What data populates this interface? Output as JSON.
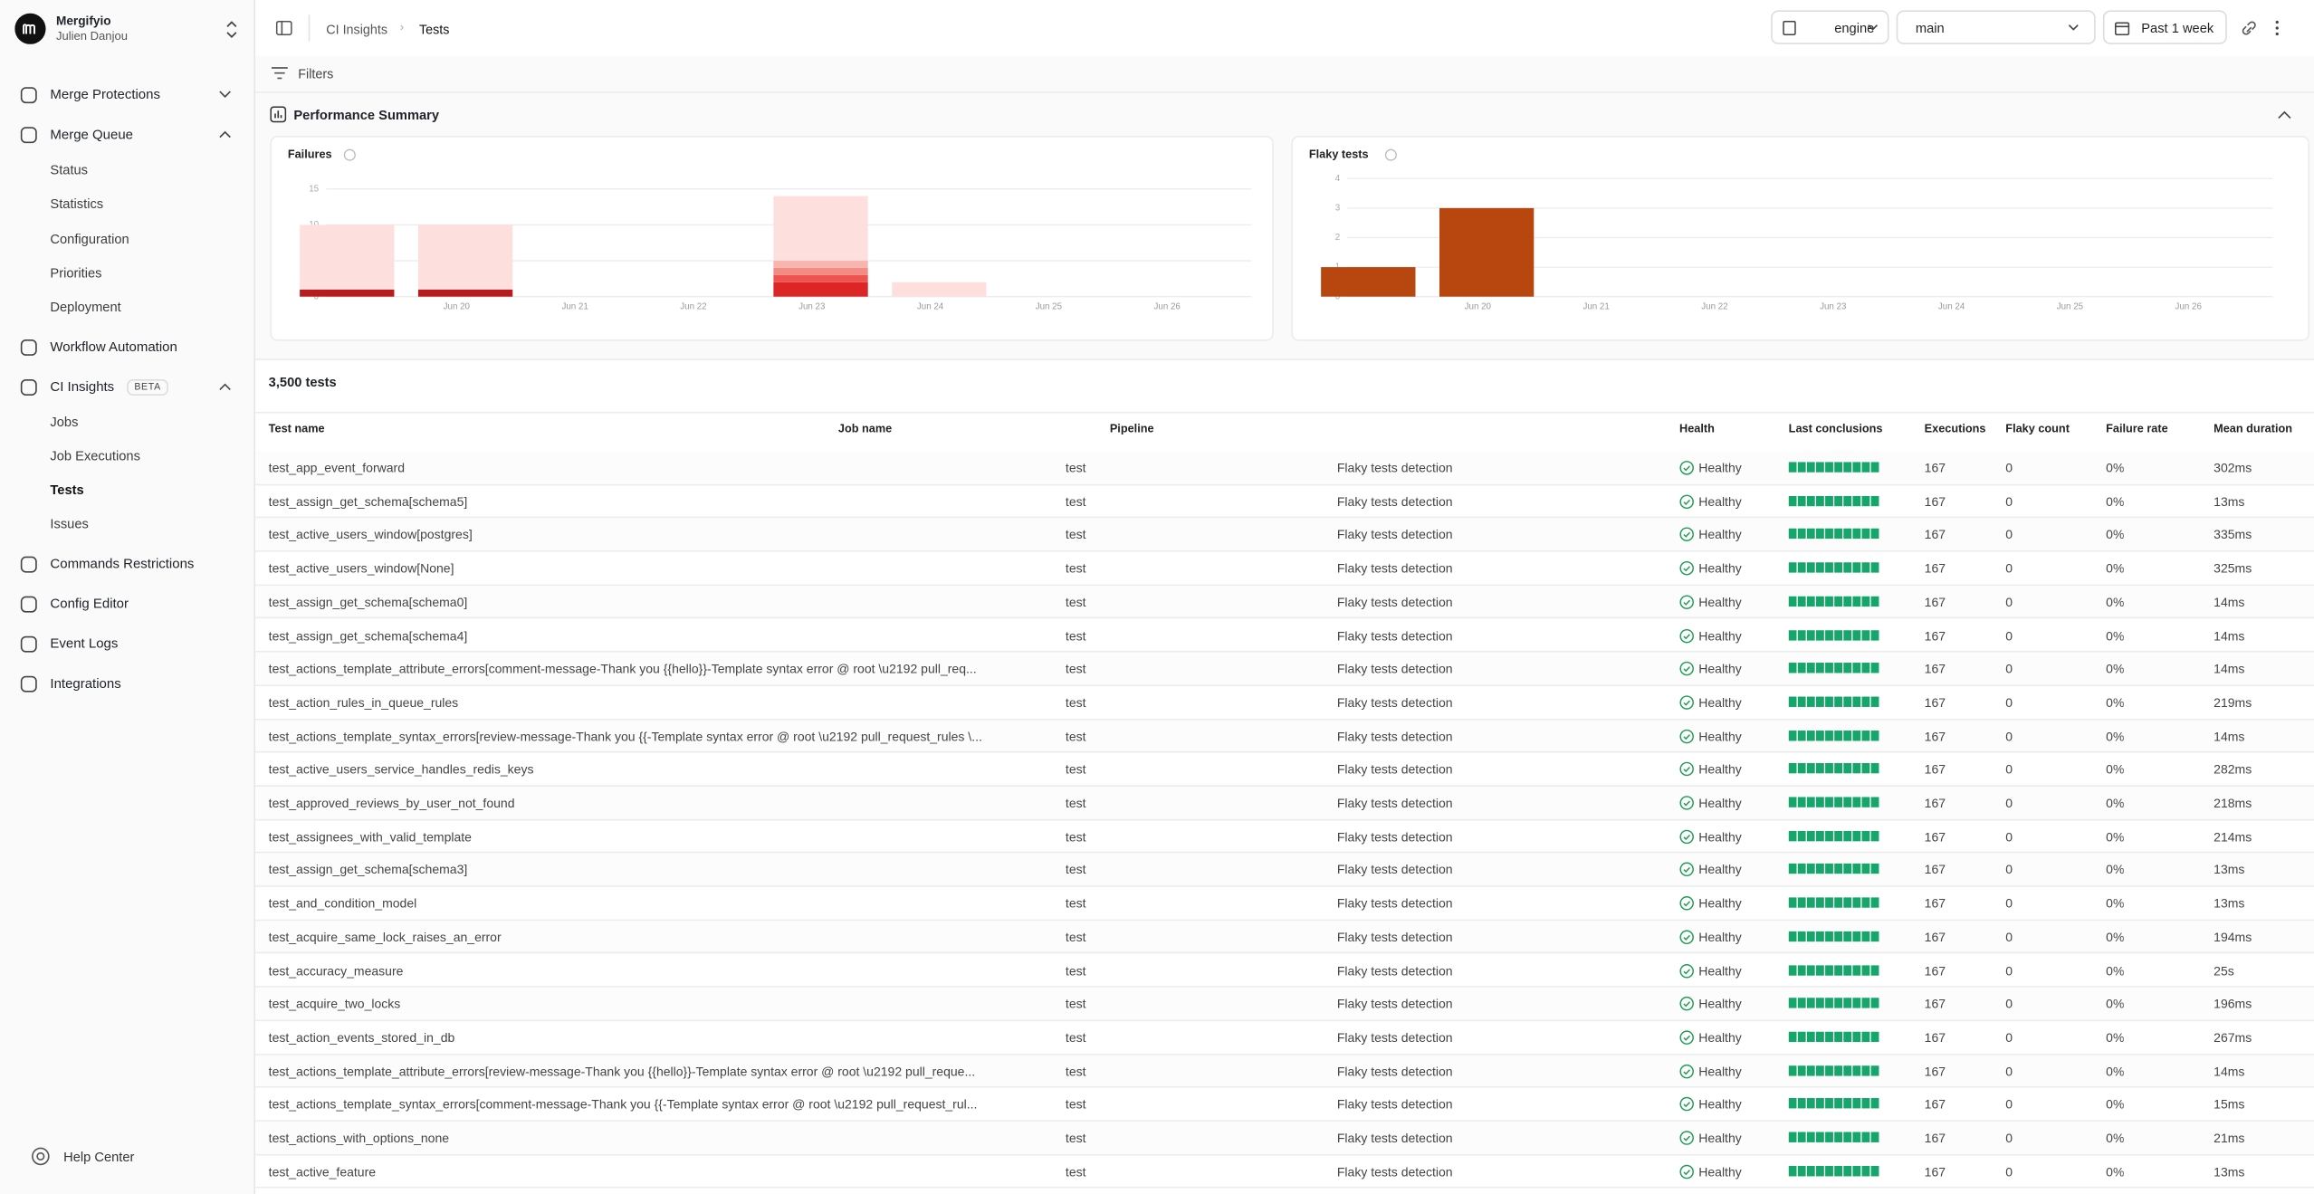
{
  "sidebar": {
    "org": "Mergifyio",
    "user": "Julien Danjou",
    "nav": [
      {
        "label": "Merge Protections",
        "expandable": true
      },
      {
        "label": "Merge Queue",
        "expandable": true,
        "children": [
          {
            "label": "Status"
          },
          {
            "label": "Statistics"
          },
          {
            "label": "Configuration"
          },
          {
            "label": "Priorities"
          },
          {
            "label": "Deployment"
          }
        ]
      },
      {
        "label": "Workflow Automation"
      },
      {
        "label": "CI Insights",
        "badge": "BETA",
        "expandable": true,
        "children": [
          {
            "label": "Jobs"
          },
          {
            "label": "Job Executions"
          },
          {
            "label": "Tests",
            "selected": true
          },
          {
            "label": "Issues"
          }
        ]
      },
      {
        "label": "Commands Restrictions"
      },
      {
        "label": "Config Editor"
      },
      {
        "label": "Event Logs"
      },
      {
        "label": "Integrations"
      }
    ],
    "help": "Help Center"
  },
  "header": {
    "breadcrumb": [
      "CI Insights",
      "Tests"
    ],
    "repository": "engine",
    "branch": "main",
    "period": "Past 1 week"
  },
  "filters": "Filters",
  "summary": {
    "title": "Performance Summary"
  },
  "chart_data": [
    {
      "type": "bar",
      "stacked": true,
      "title": "Failures",
      "categories": [
        null,
        "Jun 20",
        "Jun 21",
        "Jun 22",
        "Jun 23",
        "Jun 24",
        "Jun 25",
        "Jun 26"
      ],
      "series": [
        {
          "color": "#b91c1c",
          "values": [
            1,
            1,
            0,
            0,
            0,
            0,
            0,
            0
          ]
        },
        {
          "color": "#dc2626",
          "values": [
            0,
            0,
            0,
            0,
            2,
            0,
            0,
            0
          ]
        },
        {
          "color": "#ef5350",
          "values": [
            0,
            0,
            0,
            0,
            1,
            0,
            0,
            0
          ]
        },
        {
          "color": "#f28b82",
          "values": [
            0,
            0,
            0,
            0,
            1,
            0,
            0,
            0
          ]
        },
        {
          "color": "#f8b4ae",
          "values": [
            0,
            0,
            0,
            0,
            1,
            0,
            0,
            0
          ]
        },
        {
          "color": "#fde0dd",
          "values": [
            9,
            9,
            0,
            0,
            9,
            2,
            0,
            0
          ]
        }
      ],
      "ylim": [
        0,
        15
      ],
      "yticks": [
        0,
        5,
        10,
        15
      ],
      "grid": true
    },
    {
      "type": "bar",
      "title": "Flaky tests",
      "categories": [
        null,
        "Jun 20",
        "Jun 21",
        "Jun 22",
        "Jun 23",
        "Jun 24",
        "Jun 25",
        "Jun 26"
      ],
      "values": [
        1,
        3,
        0,
        0,
        0,
        0,
        0,
        0
      ],
      "color": "#b7460f",
      "ylim": [
        0,
        4
      ],
      "yticks": [
        0,
        1,
        2,
        3,
        4
      ],
      "grid": true
    }
  ],
  "table": {
    "count": "3,500 tests",
    "columns": [
      "Test name",
      "Job name",
      "Pipeline",
      "Health",
      "Last conclusions",
      "Executions",
      "Flaky count",
      "Failure rate",
      "Mean duration"
    ],
    "rows": [
      [
        "test_app_event_forward",
        "test",
        "Flaky tests detection",
        "Healthy",
        "167",
        "0",
        "0%",
        "302ms"
      ],
      [
        "test_assign_get_schema[schema5]",
        "test",
        "Flaky tests detection",
        "Healthy",
        "167",
        "0",
        "0%",
        "13ms"
      ],
      [
        "test_active_users_window[postgres]",
        "test",
        "Flaky tests detection",
        "Healthy",
        "167",
        "0",
        "0%",
        "335ms"
      ],
      [
        "test_active_users_window[None]",
        "test",
        "Flaky tests detection",
        "Healthy",
        "167",
        "0",
        "0%",
        "325ms"
      ],
      [
        "test_assign_get_schema[schema0]",
        "test",
        "Flaky tests detection",
        "Healthy",
        "167",
        "0",
        "0%",
        "14ms"
      ],
      [
        "test_assign_get_schema[schema4]",
        "test",
        "Flaky tests detection",
        "Healthy",
        "167",
        "0",
        "0%",
        "14ms"
      ],
      [
        "test_actions_template_attribute_errors[comment-message-Thank you {{hello}}-Template syntax error @ root \\u2192 pull_req...",
        "test",
        "Flaky tests detection",
        "Healthy",
        "167",
        "0",
        "0%",
        "14ms"
      ],
      [
        "test_action_rules_in_queue_rules",
        "test",
        "Flaky tests detection",
        "Healthy",
        "167",
        "0",
        "0%",
        "219ms"
      ],
      [
        "test_actions_template_syntax_errors[review-message-Thank you {{-Template syntax error @ root \\u2192 pull_request_rules \\...",
        "test",
        "Flaky tests detection",
        "Healthy",
        "167",
        "0",
        "0%",
        "14ms"
      ],
      [
        "test_active_users_service_handles_redis_keys",
        "test",
        "Flaky tests detection",
        "Healthy",
        "167",
        "0",
        "0%",
        "282ms"
      ],
      [
        "test_approved_reviews_by_user_not_found",
        "test",
        "Flaky tests detection",
        "Healthy",
        "167",
        "0",
        "0%",
        "218ms"
      ],
      [
        "test_assignees_with_valid_template",
        "test",
        "Flaky tests detection",
        "Healthy",
        "167",
        "0",
        "0%",
        "214ms"
      ],
      [
        "test_assign_get_schema[schema3]",
        "test",
        "Flaky tests detection",
        "Healthy",
        "167",
        "0",
        "0%",
        "13ms"
      ],
      [
        "test_and_condition_model",
        "test",
        "Flaky tests detection",
        "Healthy",
        "167",
        "0",
        "0%",
        "13ms"
      ],
      [
        "test_acquire_same_lock_raises_an_error",
        "test",
        "Flaky tests detection",
        "Healthy",
        "167",
        "0",
        "0%",
        "194ms"
      ],
      [
        "test_accuracy_measure",
        "test",
        "Flaky tests detection",
        "Healthy",
        "167",
        "0",
        "0%",
        "25s"
      ],
      [
        "test_acquire_two_locks",
        "test",
        "Flaky tests detection",
        "Healthy",
        "167",
        "0",
        "0%",
        "196ms"
      ],
      [
        "test_action_events_stored_in_db",
        "test",
        "Flaky tests detection",
        "Healthy",
        "167",
        "0",
        "0%",
        "267ms"
      ],
      [
        "test_actions_template_attribute_errors[review-message-Thank you {{hello}}-Template syntax error @ root \\u2192 pull_reque...",
        "test",
        "Flaky tests detection",
        "Healthy",
        "167",
        "0",
        "0%",
        "14ms"
      ],
      [
        "test_actions_template_syntax_errors[comment-message-Thank you {{-Template syntax error @ root \\u2192 pull_request_rul...",
        "test",
        "Flaky tests detection",
        "Healthy",
        "167",
        "0",
        "0%",
        "15ms"
      ],
      [
        "test_actions_with_options_none",
        "test",
        "Flaky tests detection",
        "Healthy",
        "167",
        "0",
        "0%",
        "21ms"
      ],
      [
        "test_active_feature",
        "test",
        "Flaky tests detection",
        "Healthy",
        "167",
        "0",
        "0%",
        "13ms"
      ]
    ]
  }
}
